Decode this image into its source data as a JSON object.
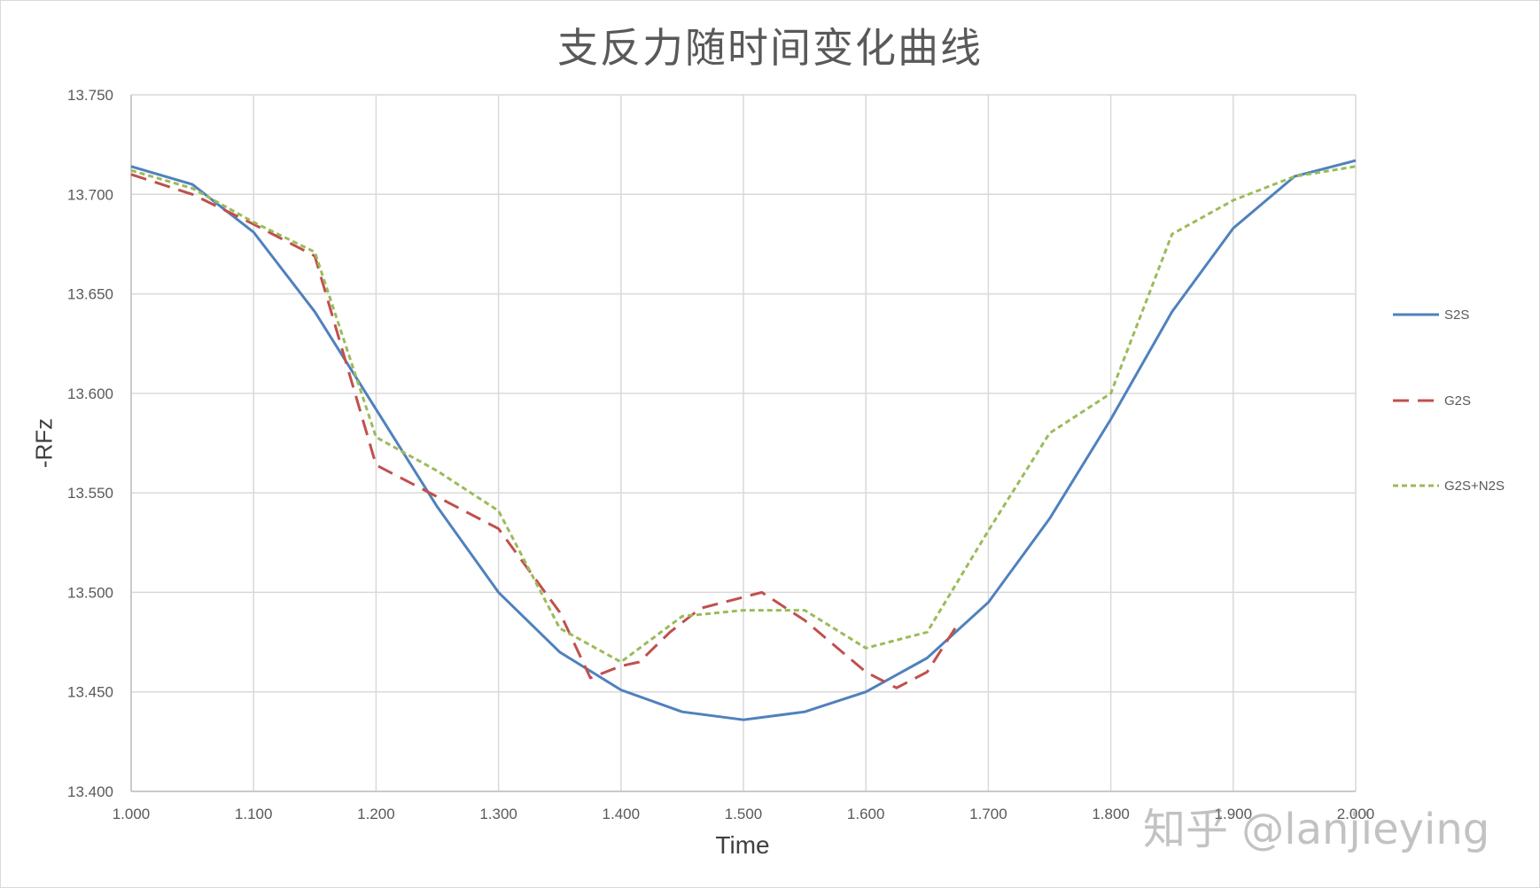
{
  "chart_data": {
    "type": "line",
    "title": "支反力随时间变化曲线",
    "xlabel": "Time",
    "ylabel": "-RFz",
    "xlim": [
      1.0,
      2.0
    ],
    "ylim": [
      13.4,
      13.75
    ],
    "x_ticks": [
      "1.000",
      "1.100",
      "1.200",
      "1.300",
      "1.400",
      "1.500",
      "1.600",
      "1.700",
      "1.800",
      "1.900",
      "2.000"
    ],
    "y_ticks": [
      "13.400",
      "13.450",
      "13.500",
      "13.550",
      "13.600",
      "13.650",
      "13.700",
      "13.750"
    ],
    "grid": true,
    "legend_position": "right",
    "series": [
      {
        "name": "S2S",
        "color": "#4f81bd",
        "dash": "solid",
        "x": [
          1.0,
          1.05,
          1.1,
          1.15,
          1.2,
          1.25,
          1.3,
          1.35,
          1.4,
          1.45,
          1.5,
          1.55,
          1.6,
          1.65,
          1.7,
          1.75,
          1.8,
          1.85,
          1.9,
          1.95,
          2.0
        ],
        "y": [
          13.714,
          13.705,
          13.681,
          13.641,
          13.592,
          13.543,
          13.5,
          13.47,
          13.451,
          13.44,
          13.436,
          13.44,
          13.45,
          13.467,
          13.495,
          13.537,
          13.587,
          13.641,
          13.683,
          13.709,
          13.717
        ]
      },
      {
        "name": "G2S",
        "color": "#c0504d",
        "dash": "long",
        "x": [
          1.0,
          1.05,
          1.1,
          1.15,
          1.2,
          1.25,
          1.3,
          1.35,
          1.375,
          1.4,
          1.415,
          1.44,
          1.465,
          1.49,
          1.515,
          1.55,
          1.6,
          1.625,
          1.65,
          1.675
        ],
        "y": [
          13.71,
          13.7,
          13.685,
          13.669,
          13.564,
          13.548,
          13.532,
          13.49,
          13.457,
          13.463,
          13.465,
          13.48,
          13.492,
          13.496,
          13.5,
          13.486,
          13.46,
          13.452,
          13.46,
          13.484
        ]
      },
      {
        "name": "G2S+N2S",
        "color": "#9bbb59",
        "dash": "short",
        "x": [
          1.0,
          1.05,
          1.1,
          1.15,
          1.2,
          1.25,
          1.3,
          1.35,
          1.4,
          1.45,
          1.5,
          1.55,
          1.6,
          1.65,
          1.7,
          1.75,
          1.8,
          1.85,
          1.9,
          1.95,
          2.0
        ],
        "y": [
          13.712,
          13.703,
          13.686,
          13.671,
          13.578,
          13.561,
          13.541,
          13.482,
          13.465,
          13.488,
          13.491,
          13.491,
          13.472,
          13.48,
          13.531,
          13.58,
          13.6,
          13.68,
          13.697,
          13.709,
          13.714
        ]
      }
    ]
  },
  "watermark": "知乎 @lanjieying"
}
